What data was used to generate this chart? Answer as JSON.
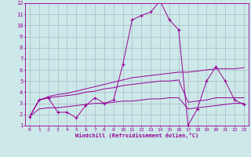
{
  "xlabel": "Windchill (Refroidissement éolien,°C)",
  "bg_color": "#cce8e8",
  "line_color": "#990099",
  "xlim": [
    -0.5,
    23.5
  ],
  "ylim": [
    1,
    12
  ],
  "xticks": [
    0,
    1,
    2,
    3,
    4,
    5,
    6,
    7,
    8,
    9,
    10,
    11,
    12,
    13,
    14,
    15,
    16,
    17,
    18,
    19,
    20,
    21,
    22,
    23
  ],
  "yticks": [
    1,
    2,
    3,
    4,
    5,
    6,
    7,
    8,
    9,
    10,
    11,
    12
  ],
  "grid_color": "#aabbcc",
  "series1_x": [
    0,
    1,
    2,
    3,
    4,
    5,
    6,
    7,
    8,
    9,
    10,
    11,
    12,
    13,
    14,
    15,
    16,
    17,
    18,
    19,
    20,
    21,
    22,
    23
  ],
  "series1_y": [
    1.8,
    3.3,
    3.5,
    2.2,
    2.2,
    1.7,
    2.8,
    3.5,
    3.0,
    3.3,
    6.5,
    10.5,
    10.9,
    11.2,
    12.2,
    10.5,
    9.6,
    1.0,
    2.5,
    5.0,
    6.3,
    5.0,
    3.3,
    2.9
  ],
  "series2_x": [
    0,
    1,
    2,
    3,
    4,
    5,
    6,
    7,
    8,
    9,
    10,
    11,
    12,
    13,
    14,
    15,
    16,
    17,
    18,
    19,
    20,
    21,
    22,
    23
  ],
  "series2_y": [
    1.8,
    3.3,
    3.6,
    3.8,
    3.9,
    4.1,
    4.3,
    4.5,
    4.7,
    4.9,
    5.1,
    5.3,
    5.4,
    5.5,
    5.6,
    5.7,
    5.8,
    5.8,
    5.9,
    6.0,
    6.1,
    6.1,
    6.1,
    6.2
  ],
  "series3_x": [
    0,
    1,
    2,
    3,
    4,
    5,
    6,
    7,
    8,
    9,
    10,
    11,
    12,
    13,
    14,
    15,
    16,
    17,
    18,
    19,
    20,
    21,
    22,
    23
  ],
  "series3_y": [
    1.8,
    3.3,
    3.5,
    3.6,
    3.7,
    3.8,
    4.0,
    4.1,
    4.3,
    4.4,
    4.6,
    4.7,
    4.8,
    4.9,
    5.0,
    5.0,
    5.1,
    3.1,
    3.2,
    3.3,
    3.5,
    3.5,
    3.5,
    3.5
  ],
  "series4_x": [
    0,
    1,
    2,
    3,
    4,
    5,
    6,
    7,
    8,
    9,
    10,
    11,
    12,
    13,
    14,
    15,
    16,
    17,
    18,
    19,
    20,
    21,
    22,
    23
  ],
  "series4_y": [
    1.8,
    2.5,
    2.6,
    2.6,
    2.7,
    2.8,
    2.9,
    3.0,
    3.0,
    3.1,
    3.2,
    3.2,
    3.3,
    3.4,
    3.4,
    3.5,
    3.5,
    2.5,
    2.6,
    2.7,
    2.8,
    2.9,
    3.0,
    3.0
  ]
}
